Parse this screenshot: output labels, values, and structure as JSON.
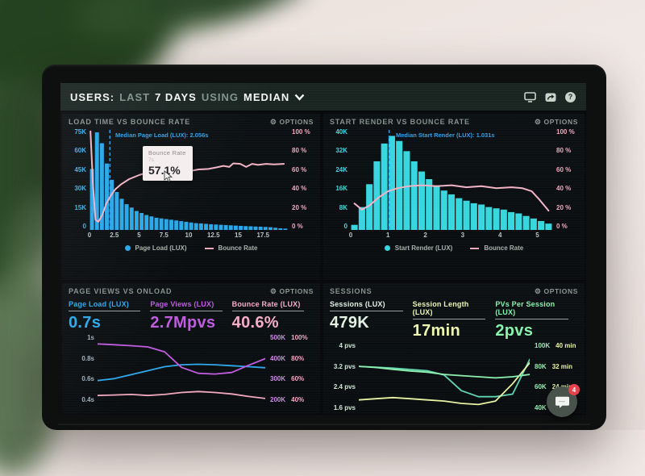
{
  "top_bar": {
    "segments": [
      {
        "text": "USERS:",
        "emph": true
      },
      {
        "text": "LAST",
        "emph": false
      },
      {
        "text": "7 DAYS",
        "emph": true
      },
      {
        "text": "USING",
        "emph": false
      },
      {
        "text": "MEDIAN",
        "emph": true
      }
    ],
    "help_glyph": "?"
  },
  "icons": {
    "top_bar": [
      "display-icon",
      "share-icon",
      "help-icon"
    ],
    "panel_options": "gear-icon",
    "gear_glyph": "⚙",
    "chat": "chat-bubble-icon"
  },
  "panels": [
    {
      "title": "LOAD TIME VS BOUNCE RATE",
      "options_label": "OPTIONS"
    },
    {
      "title": "START RENDER VS BOUNCE RATE",
      "options_label": "OPTIONS"
    },
    {
      "title": "PAGE VIEWS VS ONLOAD",
      "options_label": "OPTIONS",
      "metrics": [
        {
          "label": "Page Load (LUX)",
          "value": "0.7s",
          "color": "#2fa8ec"
        },
        {
          "label": "Page Views (LUX)",
          "value": "2.7Mpvs",
          "color": "#c05ce0"
        },
        {
          "label": "Bounce Rate (LUX)",
          "value": "40.6%",
          "color": "#f6aec6"
        }
      ]
    },
    {
      "title": "SESSIONS",
      "options_label": "OPTIONS",
      "metrics": [
        {
          "label": "Sessions (LUX)",
          "value": "479K",
          "color": "#e2f2e3"
        },
        {
          "label": "Session Length (LUX)",
          "value": "17min",
          "color": "#eef7b0"
        },
        {
          "label": "PVs Per Session (LUX)",
          "value": "2pvs",
          "color": "#86f2ae"
        }
      ]
    }
  ],
  "chat_widget": {
    "badge": "4"
  },
  "chart_data": [
    {
      "type": "bar",
      "title": "LOAD TIME VS BOUNCE RATE",
      "bar_series": "Page Load (LUX)",
      "bar_color": "#2aa7e8",
      "x_bin_width": 0.5,
      "xmax": 20,
      "ymax_k": 75,
      "bar_values_k": [
        45,
        72,
        64,
        49,
        37,
        28,
        23,
        19,
        16.5,
        14,
        12.5,
        11,
        10,
        9,
        8.5,
        8,
        7.5,
        7,
        6.5,
        6,
        5.5,
        5,
        4.8,
        4.5,
        4.2,
        4,
        3.8,
        3.6,
        3.4,
        3.2,
        3,
        2.8,
        2.7,
        2.5,
        2.4,
        2.2,
        2,
        1.6,
        1.2,
        1
      ],
      "left_axis": [
        "75K",
        "60K",
        "45K",
        "30K",
        "15K",
        "0"
      ],
      "left_axis_color": "#3fb0ea",
      "right_axis": [
        "100 %",
        "80 %",
        "60 %",
        "40 %",
        "20 %",
        "0 %"
      ],
      "right_axis_color": "#f2a8bc",
      "x_ticks": [
        0,
        2.5,
        5,
        7.5,
        10,
        12.5,
        15,
        17.5
      ],
      "line_series": "Bounce Rate",
      "line_color": "#f2b4c4",
      "line_points": [
        [
          0.1,
          97
        ],
        [
          0.35,
          45
        ],
        [
          0.6,
          10
        ],
        [
          0.9,
          8
        ],
        [
          1.3,
          15
        ],
        [
          1.7,
          26
        ],
        [
          2.1,
          33
        ],
        [
          2.6,
          40
        ],
        [
          3.2,
          45
        ],
        [
          4,
          50
        ],
        [
          5,
          54
        ],
        [
          6,
          57
        ],
        [
          7,
          57.5
        ],
        [
          8,
          58
        ],
        [
          8.8,
          57.5
        ],
        [
          9.5,
          59
        ],
        [
          10.2,
          58
        ],
        [
          11,
          59.5
        ],
        [
          12,
          60
        ],
        [
          12.8,
          61.5
        ],
        [
          13.5,
          63
        ],
        [
          14.1,
          62
        ],
        [
          14.5,
          65.5
        ],
        [
          15.2,
          65
        ],
        [
          15.8,
          62
        ],
        [
          16.4,
          65
        ],
        [
          17,
          64
        ],
        [
          17.8,
          65
        ],
        [
          18.6,
          64.5
        ],
        [
          19.6,
          65
        ]
      ],
      "median_label": "Median Page Load (LUX): 2.056s",
      "median_x": 2.056,
      "tooltip": {
        "title": "Bounce Rate",
        "sub": "7s",
        "value": "57.1%"
      },
      "legend": [
        "Page Load (LUX)",
        "Bounce Rate"
      ]
    },
    {
      "type": "bar",
      "title": "START RENDER VS BOUNCE RATE",
      "bar_series": "Start Render (LUX)",
      "bar_color": "#38d6de",
      "x_bin_width": 0.2,
      "xmax": 5.4,
      "ymax_k": 40,
      "bar_values_k": [
        2,
        9,
        18,
        27,
        34,
        37,
        35,
        31,
        27,
        23,
        20,
        17.5,
        15.5,
        14,
        12.5,
        11.5,
        10.5,
        10,
        9,
        8.5,
        8,
        7,
        6.5,
        5.5,
        4.5,
        3.5,
        2.5
      ],
      "left_axis": [
        "40K",
        "32K",
        "24K",
        "16K",
        "8K",
        "0"
      ],
      "left_axis_color": "#3fd8e0",
      "right_axis": [
        "100 %",
        "80 %",
        "60 %",
        "40 %",
        "20 %",
        "0 %"
      ],
      "right_axis_color": "#f2a8bc",
      "x_ticks": [
        0,
        1,
        2,
        3,
        4,
        5
      ],
      "line_series": "Bounce Rate",
      "line_color": "#f2b4c4",
      "line_points": [
        [
          0.1,
          26
        ],
        [
          0.3,
          20
        ],
        [
          0.5,
          24
        ],
        [
          0.75,
          32
        ],
        [
          1,
          38
        ],
        [
          1.25,
          41
        ],
        [
          1.55,
          43
        ],
        [
          1.9,
          44
        ],
        [
          2.3,
          43
        ],
        [
          2.7,
          44
        ],
        [
          3.1,
          42
        ],
        [
          3.5,
          43
        ],
        [
          3.9,
          41
        ],
        [
          4.3,
          42
        ],
        [
          4.6,
          41
        ],
        [
          4.85,
          38
        ],
        [
          5.05,
          30
        ],
        [
          5.3,
          19
        ]
      ],
      "median_label": "Median Start Render (LUX): 1.031s",
      "median_x": 1.031,
      "legend": [
        "Start Render (LUX)",
        "Bounce Rate"
      ]
    },
    {
      "type": "line",
      "title": "PAGE VIEWS VS ONLOAD",
      "left_axis": [
        "1s",
        "0.8s",
        "0.6s",
        "0.4s"
      ],
      "left_axis_color": "#9fb0bd",
      "right_axis_pairs": [
        [
          "500K",
          "100%"
        ],
        [
          "400K",
          "80%"
        ],
        [
          "300K",
          "60%"
        ],
        [
          "200K",
          "40%"
        ]
      ],
      "right_pair_colors": [
        "#c98fdf",
        "#f2a8c0"
      ],
      "series": [
        {
          "name": "Page Load (LUX)",
          "color": "#2fa8ec",
          "range": [
            0.35,
            1.05
          ],
          "values": [
            0.58,
            0.6,
            0.64,
            0.68,
            0.72,
            0.74,
            0.745,
            0.74,
            0.73,
            0.72,
            0.71
          ]
        },
        {
          "name": "Page Views (LUX)",
          "color": "#c05ce0",
          "range": [
            170,
            520
          ],
          "values": [
            470,
            466,
            461,
            455,
            430,
            352,
            322,
            318,
            326,
            362,
            396
          ]
        },
        {
          "name": "Bounce Rate (LUX)",
          "color": "#f2a8bc",
          "range": [
            35,
            105
          ],
          "values": [
            43,
            43.5,
            44,
            43,
            44,
            46,
            47,
            46,
            44.5,
            42,
            40
          ]
        }
      ]
    },
    {
      "type": "line",
      "title": "SESSIONS",
      "left_axis": [
        "4 pvs",
        "3.2 pvs",
        "2.4 pvs",
        "1.6 pvs"
      ],
      "left_axis_color": "#cfe8d4",
      "right_axis_pairs": [
        [
          "100K",
          "40 min"
        ],
        [
          "80K",
          "32 min"
        ],
        [
          "60K",
          "24 min"
        ],
        [
          "40K",
          ""
        ]
      ],
      "right_pair_colors": [
        "#9fe8b5",
        "#e9f5a6"
      ],
      "series": [
        {
          "name": "Sessions (LUX)",
          "color": "#5fd4b0",
          "range": [
            28,
            108
          ],
          "values": [
            80,
            79,
            78,
            76.5,
            75,
            70,
            52,
            45,
            45,
            48,
            88
          ]
        },
        {
          "name": "Session Length (LUX)",
          "color": "#e8f2a2",
          "range": [
            13,
            43
          ],
          "values": [
            18,
            18.5,
            19,
            18.5,
            18,
            17.5,
            16.5,
            16,
            17.5,
            25,
            34
          ]
        },
        {
          "name": "PVs Per Session (LUX)",
          "color": "#8ef0b0",
          "range": [
            1.3,
            4.3
          ],
          "values": [
            3.25,
            3.2,
            3.12,
            3.05,
            3.0,
            2.9,
            2.85,
            2.8,
            2.75,
            2.8,
            2.9
          ]
        }
      ]
    }
  ]
}
